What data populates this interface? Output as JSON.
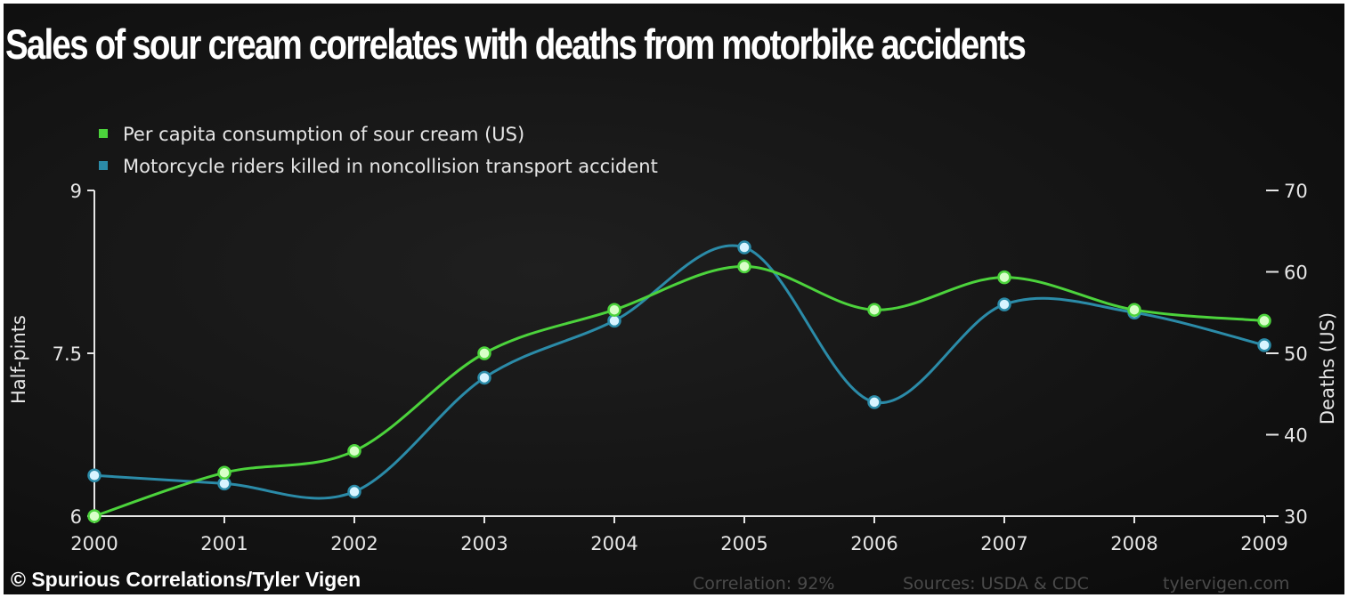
{
  "chart_data": {
    "type": "line",
    "title": "Sales of sour cream correlates with deaths from motorbike accidents",
    "categories": [
      "2000",
      "2001",
      "2002",
      "2003",
      "2004",
      "2005",
      "2006",
      "2007",
      "2008",
      "2009"
    ],
    "y_left": {
      "label": "Half-pints",
      "range": [
        6,
        9
      ],
      "ticks": [
        "6",
        "7.5",
        "9"
      ]
    },
    "y_right": {
      "label": "Deaths (US)",
      "range": [
        30,
        70
      ],
      "ticks": [
        "30",
        "40",
        "50",
        "60",
        "70"
      ]
    },
    "series": [
      {
        "name": "Per capita consumption of sour cream (US)",
        "axis": "left",
        "color": "#4cd33c",
        "values": [
          6.0,
          6.4,
          6.6,
          7.5,
          7.9,
          8.3,
          7.9,
          8.2,
          7.9,
          7.8
        ]
      },
      {
        "name": "Motorcycle riders killed in noncollision transport accident",
        "axis": "right",
        "color": "#2b8ba8",
        "values": [
          35,
          34,
          33,
          47,
          54,
          63,
          44,
          56,
          55,
          51
        ]
      }
    ],
    "legend_position": "top-left",
    "grid": false
  },
  "footer": {
    "credit": "© Spurious Correlations/Tyler Vigen",
    "correlation": "Correlation: 92%",
    "sources": "Sources: USDA & CDC",
    "site": "tylervigen.com"
  }
}
